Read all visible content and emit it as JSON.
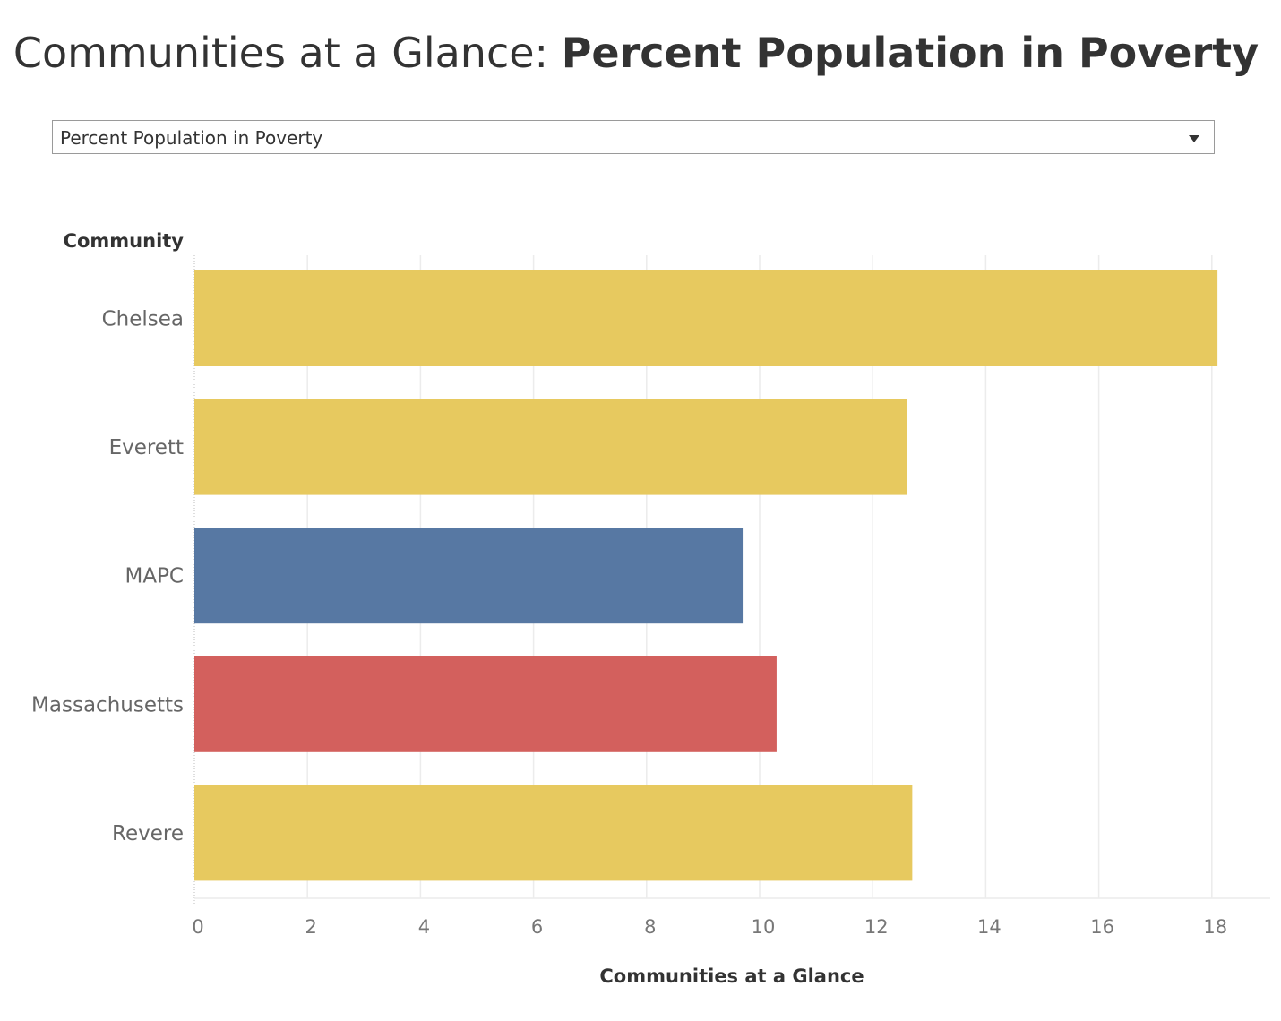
{
  "title": {
    "prefix": "Communities at a Glance: ",
    "metric": "Percent Population in Poverty"
  },
  "metric_selector": {
    "selected": "Percent Population in Poverty",
    "arrow_icon": "dropdown-arrow-icon"
  },
  "chart_data": {
    "type": "bar",
    "orientation": "horizontal",
    "row_header": "Community",
    "xlabel": "Communities at a Glance",
    "categories": [
      "Chelsea",
      "Everett",
      "MAPC",
      "Massachusetts",
      "Revere"
    ],
    "values": [
      18.1,
      12.6,
      9.7,
      10.3,
      12.7
    ],
    "colors": [
      "#e7c95f",
      "#e7c95f",
      "#5778a3",
      "#d3605d",
      "#e7c95f"
    ],
    "xlim": [
      0,
      19
    ],
    "xticks": [
      0,
      2,
      4,
      6,
      8,
      10,
      12,
      14,
      16,
      18
    ],
    "grid": "vertical"
  }
}
